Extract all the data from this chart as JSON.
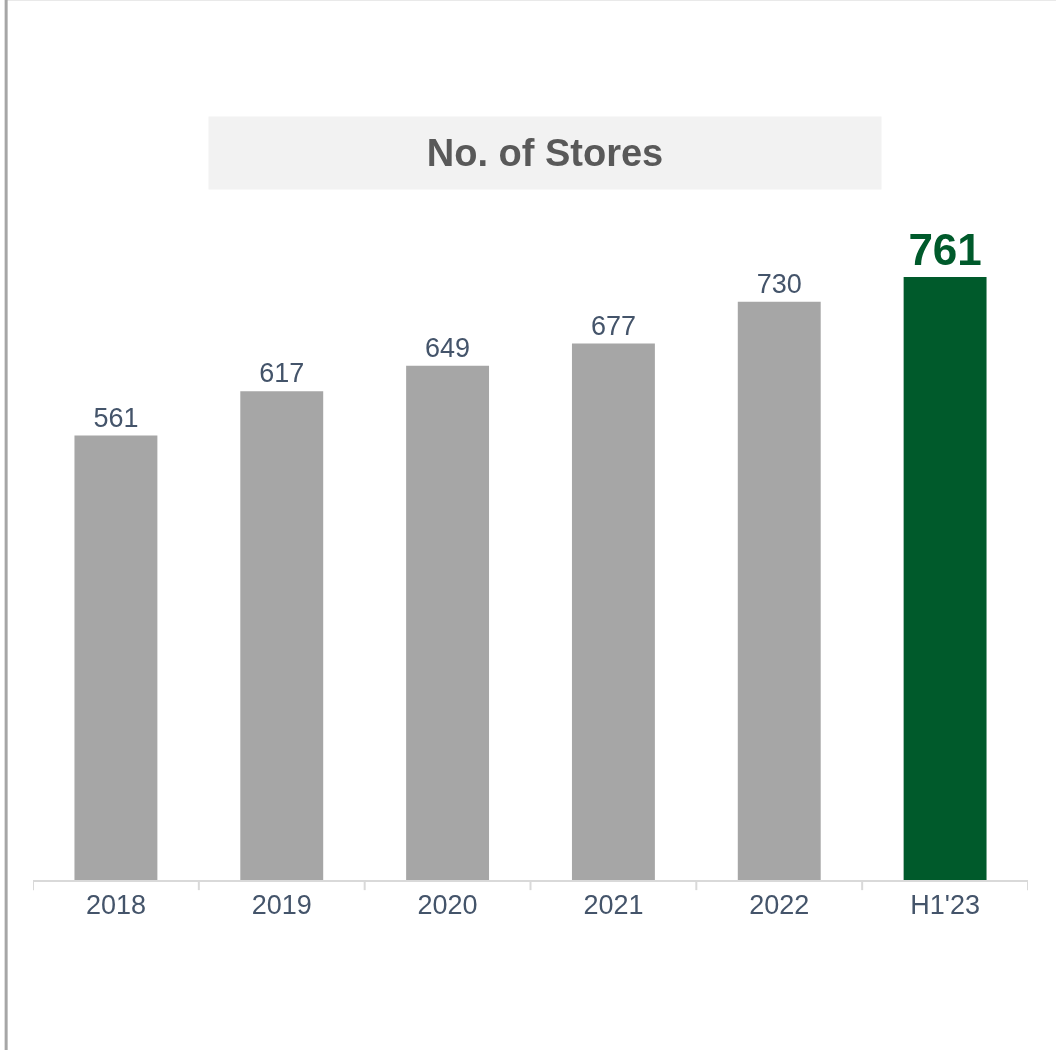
{
  "chart_data": {
    "type": "bar",
    "title": "No. of Stores",
    "categories": [
      "2018",
      "2019",
      "2020",
      "2021",
      "2022",
      "H1'23"
    ],
    "values": [
      561,
      617,
      649,
      677,
      730,
      761
    ],
    "colors": [
      "#a6a6a6",
      "#a6a6a6",
      "#a6a6a6",
      "#a6a6a6",
      "#a6a6a6",
      "#005a2b"
    ],
    "data_labels": true,
    "tick_labels": "x"
  }
}
